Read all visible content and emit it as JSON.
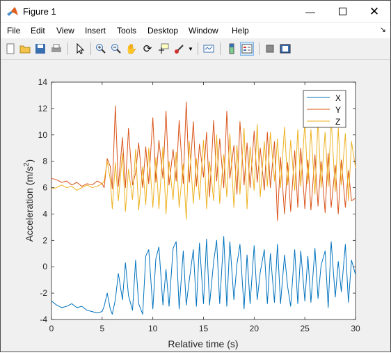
{
  "window": {
    "title": "Figure 1"
  },
  "menu": [
    "File",
    "Edit",
    "View",
    "Insert",
    "Tools",
    "Desktop",
    "Window",
    "Help"
  ],
  "toolbar_icons": [
    "new-figure-icon",
    "open-file-icon",
    "save-icon",
    "print-icon",
    "pointer-icon",
    "zoom-in-icon",
    "zoom-out-icon",
    "pan-icon",
    "rotate-3d-icon",
    "data-cursor-icon",
    "brush-icon",
    "brush-dropdown-icon",
    "link-plot-icon",
    "colorbar-icon",
    "legend-icon",
    "hide-plot-tools-icon",
    "show-plot-tools-icon"
  ],
  "colors": {
    "X": "#0072BD",
    "Y": "#D95319",
    "Z": "#EDB120"
  },
  "chart_data": {
    "type": "line",
    "xlabel": "Relative time (s)",
    "ylabel": "Acceleration (m/s²)",
    "xlim": [
      0,
      30
    ],
    "ylim": [
      -4,
      14
    ],
    "xticks": [
      "0",
      "5",
      "10",
      "15",
      "20",
      "25",
      "30"
    ],
    "yticks": [
      "-4",
      "-2",
      "0",
      "2",
      "4",
      "6",
      "8",
      "10",
      "12",
      "14"
    ],
    "grid": false,
    "legend": "top-right",
    "series": [
      {
        "name": "X",
        "x": [
          0,
          0.5,
          1,
          1.5,
          2,
          2.5,
          3,
          3.5,
          4,
          4.5,
          5,
          5.2,
          5.5,
          5.8,
          6,
          6.3,
          6.6,
          7,
          7.3,
          7.6,
          8,
          8.3,
          8.6,
          9,
          9.3,
          9.6,
          10,
          10.3,
          10.6,
          11,
          11.3,
          11.6,
          12,
          12.3,
          12.6,
          13,
          13.3,
          13.6,
          14,
          14.3,
          14.6,
          15,
          15.3,
          15.6,
          16,
          16.3,
          16.6,
          17,
          17.3,
          17.6,
          18,
          18.3,
          18.6,
          19,
          19.3,
          19.6,
          20,
          20.3,
          20.6,
          21,
          21.3,
          21.6,
          22,
          22.3,
          22.6,
          23,
          23.3,
          23.6,
          24,
          24.3,
          24.6,
          25,
          25.3,
          25.6,
          26,
          26.3,
          26.6,
          27,
          27.3,
          27.6,
          28,
          28.3,
          28.6,
          29,
          29.3,
          29.6,
          30
        ],
        "values": [
          -2.6,
          -2.9,
          -3.1,
          -3.0,
          -2.8,
          -3.1,
          -3.0,
          -3.3,
          -3.4,
          -3.5,
          -3.4,
          -3.0,
          -2.0,
          -3.2,
          -3.6,
          -2.5,
          -0.5,
          -2.5,
          0.3,
          -2.2,
          -3.3,
          0.5,
          -2.8,
          -3.6,
          0.8,
          1.3,
          -3.2,
          0.6,
          1.5,
          -2.9,
          -0.2,
          -3.0,
          1.4,
          1.9,
          -3.2,
          1.2,
          -2.9,
          -1.0,
          1.3,
          -3.0,
          1.8,
          -2.8,
          2.1,
          -2.9,
          0.4,
          2.0,
          -2.8,
          2.3,
          -3.0,
          1.9,
          -2.5,
          0.2,
          1.7,
          -3.2,
          0.9,
          -2.8,
          1.6,
          -2.5,
          -0.4,
          1.3,
          -2.8,
          1.0,
          -2.7,
          1.7,
          -2.8,
          0.9,
          -1.5,
          -3.0,
          1.3,
          -2.8,
          1.2,
          -2.6,
          0.8,
          -2.7,
          1.4,
          -2.4,
          0.1,
          1.2,
          -3.1,
          1.9,
          -2.3,
          0.4,
          -1.9,
          1.7,
          -2.7,
          0.5,
          -0.6
        ]
      },
      {
        "name": "Y",
        "x": [
          0,
          0.5,
          1,
          1.5,
          2,
          2.5,
          3,
          3.5,
          4,
          4.5,
          5,
          5.2,
          5.5,
          5.8,
          6,
          6.3,
          6.6,
          7,
          7.3,
          7.6,
          8,
          8.3,
          8.6,
          9,
          9.3,
          9.6,
          10,
          10.3,
          10.6,
          11,
          11.3,
          11.6,
          12,
          12.3,
          12.6,
          13,
          13.3,
          13.6,
          14,
          14.3,
          14.6,
          15,
          15.3,
          15.6,
          16,
          16.3,
          16.6,
          17,
          17.3,
          17.6,
          18,
          18.3,
          18.6,
          19,
          19.3,
          19.6,
          20,
          20.3,
          20.6,
          21,
          21.3,
          21.6,
          22,
          22.3,
          22.6,
          23,
          23.3,
          23.6,
          24,
          24.3,
          24.6,
          25,
          25.3,
          25.6,
          26,
          26.3,
          26.6,
          27,
          27.3,
          27.6,
          28,
          28.3,
          28.6,
          29,
          29.3,
          29.6,
          30
        ],
        "values": [
          6.7,
          6.6,
          6.4,
          6.5,
          6.2,
          6.4,
          6.1,
          6.3,
          6.2,
          6.5,
          6.3,
          6.0,
          8.2,
          7.6,
          5.9,
          12.2,
          6.1,
          9.8,
          6.0,
          10.5,
          6.2,
          7.1,
          9.4,
          6.0,
          9.1,
          6.3,
          11.3,
          6.4,
          9.6,
          6.7,
          11.8,
          6.2,
          8.9,
          6.5,
          11.1,
          6.3,
          12.5,
          6.4,
          11.0,
          6.1,
          9.3,
          6.8,
          10.2,
          5.3,
          11.1,
          6.5,
          9.7,
          6.0,
          11.8,
          6.7,
          9.2,
          5.5,
          11.0,
          6.2,
          9.4,
          6.0,
          10.3,
          6.4,
          9.0,
          5.8,
          10.2,
          6.0,
          9.5,
          3.5,
          8.3,
          4.0,
          7.9,
          4.2,
          8.8,
          4.5,
          9.0,
          4.4,
          8.1,
          4.3,
          8.5,
          4.6,
          8.0,
          4.1,
          8.6,
          4.5,
          7.7,
          4.0,
          8.1,
          4.5,
          7.3,
          5.0,
          5.2
        ]
      },
      {
        "name": "Z",
        "x": [
          0,
          0.5,
          1,
          1.5,
          2,
          2.5,
          3,
          3.5,
          4,
          4.5,
          5,
          5.2,
          5.5,
          5.8,
          6,
          6.3,
          6.6,
          7,
          7.3,
          7.6,
          8,
          8.3,
          8.6,
          9,
          9.3,
          9.6,
          10,
          10.3,
          10.6,
          11,
          11.3,
          11.6,
          12,
          12.3,
          12.6,
          13,
          13.3,
          13.6,
          14,
          14.3,
          14.6,
          15,
          15.3,
          15.6,
          16,
          16.3,
          16.6,
          17,
          17.3,
          17.6,
          18,
          18.3,
          18.6,
          19,
          19.3,
          19.6,
          20,
          20.3,
          20.6,
          21,
          21.3,
          21.6,
          22,
          22.3,
          22.6,
          23,
          23.3,
          23.6,
          24,
          24.3,
          24.6,
          25,
          25.3,
          25.6,
          26,
          26.3,
          26.6,
          27,
          27.3,
          27.6,
          28,
          28.3,
          28.6,
          29,
          29.3,
          29.6,
          30
        ],
        "values": [
          5.9,
          6.0,
          6.2,
          6.0,
          6.1,
          5.8,
          6.0,
          6.2,
          6.0,
          6.1,
          6.3,
          6.5,
          8.0,
          6.6,
          4.4,
          7.9,
          5.0,
          8.6,
          4.2,
          7.4,
          5.1,
          8.9,
          4.3,
          7.6,
          4.7,
          9.0,
          4.5,
          8.3,
          4.4,
          9.1,
          4.0,
          8.0,
          5.1,
          8.7,
          4.5,
          7.8,
          3.6,
          9.5,
          4.8,
          8.2,
          5.1,
          9.6,
          4.4,
          8.0,
          5.0,
          10.0,
          4.8,
          8.5,
          5.3,
          10.1,
          4.5,
          9.2,
          5.5,
          10.5,
          4.4,
          9.1,
          5.8,
          10.8,
          5.3,
          9.5,
          6.1,
          10.2,
          6.5,
          9.7,
          6.0,
          10.6,
          6.2,
          9.6,
          5.8,
          10.4,
          6.1,
          11.0,
          6.3,
          10.4,
          5.5,
          11.2,
          6.0,
          10.2,
          6.1,
          11.2,
          5.7,
          10.5,
          6.2,
          10.1,
          5.0,
          9.5,
          7.5
        ]
      }
    ]
  }
}
